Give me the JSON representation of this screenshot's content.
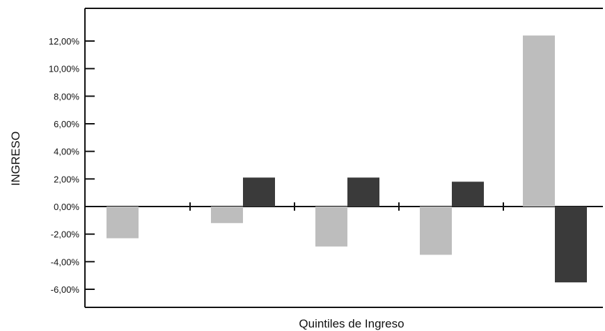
{
  "chart_data": {
    "type": "bar",
    "title": "",
    "xlabel": "Quintiles de Ingreso",
    "ylabel": "INGRESO",
    "ylim": [
      -6,
      12
    ],
    "yticks": [
      12,
      10,
      8,
      6,
      4,
      2,
      0,
      -2,
      -4,
      -6
    ],
    "ytick_labels": [
      "12,00%",
      "10,00%",
      "8,00%",
      "6,00%",
      "4,00%",
      "2,00%",
      "0,00%",
      "-2,00%",
      "-4,00%",
      "-6,00%"
    ],
    "categories": [
      "",
      "",
      "",
      "",
      ""
    ],
    "series": [
      {
        "values": [
          -2.3,
          -1.2,
          -2.9,
          -3.5,
          12.4
        ],
        "color": "#bdbdbd"
      },
      {
        "values": [
          null,
          2.1,
          2.1,
          1.8,
          -5.5
        ],
        "color": "#3a3a3a"
      }
    ],
    "grid": false,
    "legend": "none"
  }
}
